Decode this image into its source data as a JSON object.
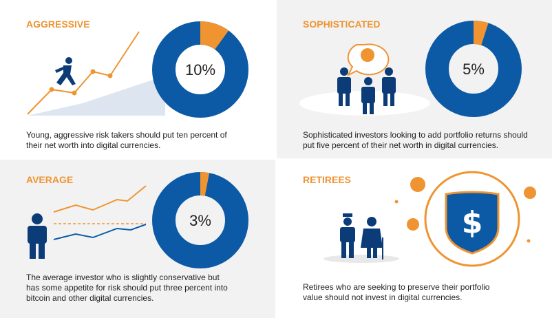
{
  "chart_data": [
    {
      "type": "donut",
      "title": "AGGRESSIVE",
      "caption": "Young, aggressive risk takers should put ten percent of their net worth into digital currencies.",
      "values": [
        10
      ],
      "value_labels": [
        "10%"
      ],
      "color": "#ef9431",
      "base_color": "#0c5aa6"
    },
    {
      "type": "donut",
      "title": "Sophisticated",
      "caption": "Sophisticated investors looking to add portfolio returns should put five percent of their net worth in digital currencies.",
      "values": [
        5
      ],
      "value_labels": [
        "5%"
      ],
      "color": "#ef9431",
      "base_color": "#0c5aa6"
    },
    {
      "type": "donut",
      "title": "AVERAGE",
      "caption": "The average investor who is slightly conservative but has some appetite for risk should put three percent into bitcoin and other digital currencies.",
      "values": [
        3
      ],
      "value_labels": [
        "3%"
      ],
      "color": "#ef9431",
      "base_color": "#0c5aa6"
    }
  ],
  "panels": [
    {
      "title": "RETIREES",
      "caption": "Retirees who are seeking to preserve their portfolio value should not invest in digital currencies."
    }
  ]
}
